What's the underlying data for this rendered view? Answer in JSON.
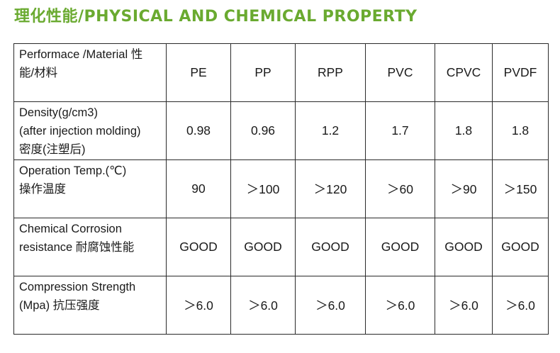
{
  "title": "理化性能/PHYSICAL AND CHEMICAL PROPERTY",
  "table": {
    "header": {
      "label_lines": [
        "Performace /Material 性",
        "能/材料"
      ],
      "materials": [
        "PE",
        "PP",
        "RPP",
        "PVC",
        "CPVC",
        "PVDF"
      ]
    },
    "rows": [
      {
        "label_lines": [
          "Density(g/cm3)",
          "(after injection molding)",
          "密度(注塑后)"
        ],
        "values": [
          "0.98",
          "0.96",
          "1.2",
          "1.7",
          "1.8",
          "1.8"
        ]
      },
      {
        "label_lines": [
          "Operation Temp.(℃)",
          "操作温度"
        ],
        "values": [
          "90",
          "＞100",
          "＞120",
          "＞60",
          "＞90",
          "＞150"
        ]
      },
      {
        "label_lines": [
          "Chemical Corrosion",
          "resistance 耐腐蚀性能"
        ],
        "values": [
          "GOOD",
          "GOOD",
          "GOOD",
          "GOOD",
          "GOOD",
          "GOOD"
        ]
      },
      {
        "label_lines": [
          "Compression Strength",
          "(Mpa) 抗压强度"
        ],
        "values": [
          "＞6.0",
          "＞6.0",
          "＞6.0",
          "＞6.0",
          "＞6.0",
          "＞6.0"
        ]
      }
    ]
  },
  "colors": {
    "title": "#6aaa30",
    "border": "#2a2a2a",
    "text": "#1a1a1a"
  }
}
